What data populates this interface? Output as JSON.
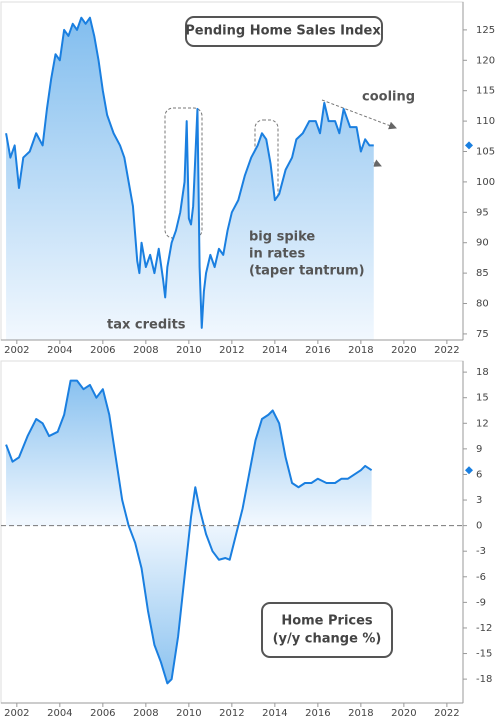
{
  "chart_data": [
    {
      "type": "area-line",
      "title": [
        "Pending Home Sales Index"
      ],
      "color": "#1a7fe0",
      "annotations": [
        [
          "cooling"
        ],
        [
          "tax credits"
        ],
        [
          "big spike",
          "in rates",
          "(taper tantrum)"
        ]
      ],
      "xlim": [
        2001.45,
        2022.75
      ],
      "xticks": [
        2002,
        2004,
        2006,
        2008,
        2010,
        2012,
        2014,
        2016,
        2018,
        2020,
        2022
      ],
      "ylim": [
        74,
        128.6
      ],
      "yticks": [
        75,
        80,
        85,
        90,
        95,
        100,
        105,
        110,
        115,
        120,
        125
      ],
      "x": [
        2001.5,
        2001.7,
        2001.9,
        2002.1,
        2002.3,
        2002.6,
        2002.9,
        2003.2,
        2003.4,
        2003.6,
        2003.8,
        2004.0,
        2004.2,
        2004.4,
        2004.6,
        2004.8,
        2005.0,
        2005.2,
        2005.4,
        2005.6,
        2005.8,
        2006.0,
        2006.2,
        2006.5,
        2006.8,
        2007.0,
        2007.2,
        2007.4,
        2007.6,
        2007.7,
        2007.8,
        2008.0,
        2008.2,
        2008.4,
        2008.6,
        2008.8,
        2008.9,
        2009.0,
        2009.2,
        2009.4,
        2009.6,
        2009.8,
        2009.9,
        2010.0,
        2010.1,
        2010.2,
        2010.3,
        2010.4,
        2010.5,
        2010.6,
        2010.7,
        2010.8,
        2011.0,
        2011.2,
        2011.4,
        2011.6,
        2011.8,
        2012.0,
        2012.3,
        2012.6,
        2012.9,
        2013.2,
        2013.4,
        2013.6,
        2013.8,
        2014.0,
        2014.2,
        2014.5,
        2014.8,
        2015.0,
        2015.3,
        2015.6,
        2015.9,
        2016.1,
        2016.3,
        2016.5,
        2016.8,
        2017.0,
        2017.2,
        2017.5,
        2017.8,
        2018.0,
        2018.2,
        2018.4,
        2018.6
      ],
      "values": [
        108,
        104,
        106,
        99,
        104,
        105,
        108,
        106,
        112,
        117,
        121,
        120,
        125,
        124,
        126,
        125,
        127,
        126,
        127,
        124,
        120,
        115,
        111,
        108,
        106,
        104,
        100,
        96,
        87,
        85,
        90,
        86,
        88,
        85,
        89,
        84,
        81,
        86,
        90,
        92,
        95,
        100,
        110,
        94,
        93,
        96,
        104,
        112,
        86,
        76,
        82,
        85,
        88,
        86,
        89,
        88,
        92,
        95,
        97,
        101,
        104,
        106,
        108,
        107,
        103,
        97,
        98,
        102,
        104,
        107,
        108,
        110,
        110,
        108,
        113,
        110,
        110,
        108,
        112,
        109,
        109,
        105,
        107,
        106,
        106
      ]
    },
    {
      "type": "area-line",
      "title": [
        "Home Prices",
        "(y/y change %)"
      ],
      "color": "#1a7fe0",
      "zero_line": true,
      "xlim": [
        2001.45,
        2022.75
      ],
      "xticks": [
        2002,
        2004,
        2006,
        2008,
        2010,
        2012,
        2014,
        2016,
        2018,
        2020,
        2022
      ],
      "ylim": [
        -20.8,
        18.6
      ],
      "yticks": [
        -18,
        -15,
        -12,
        -9,
        -6,
        -3,
        0,
        3,
        6,
        9,
        12,
        15,
        18
      ],
      "x": [
        2001.5,
        2001.8,
        2002.1,
        2002.5,
        2002.9,
        2003.2,
        2003.5,
        2003.9,
        2004.2,
        2004.5,
        2004.8,
        2005.1,
        2005.4,
        2005.7,
        2006.0,
        2006.3,
        2006.6,
        2006.9,
        2007.2,
        2007.5,
        2007.8,
        2008.1,
        2008.4,
        2008.7,
        2009.0,
        2009.2,
        2009.5,
        2009.8,
        2010.1,
        2010.3,
        2010.5,
        2010.8,
        2011.1,
        2011.4,
        2011.7,
        2011.9,
        2012.2,
        2012.5,
        2012.8,
        2013.1,
        2013.4,
        2013.7,
        2013.9,
        2014.2,
        2014.5,
        2014.8,
        2015.1,
        2015.4,
        2015.7,
        2016.0,
        2016.4,
        2016.8,
        2017.1,
        2017.4,
        2017.7,
        2018.0,
        2018.2,
        2018.5
      ],
      "values": [
        9.5,
        7.5,
        8,
        10.5,
        12.5,
        12,
        10.5,
        11,
        13,
        17,
        17,
        16,
        16.5,
        15,
        16,
        13,
        8,
        3,
        0,
        -2,
        -5,
        -10,
        -14,
        -16,
        -18.5,
        -18,
        -13,
        -6,
        1,
        4.5,
        2,
        -1,
        -3,
        -4,
        -3.8,
        -4,
        -1,
        2,
        6,
        10,
        12.5,
        13,
        13.5,
        12,
        8,
        5,
        4.5,
        5,
        5,
        5.5,
        5,
        5,
        5.5,
        5.5,
        6,
        6.5,
        7,
        6.5
      ]
    }
  ]
}
